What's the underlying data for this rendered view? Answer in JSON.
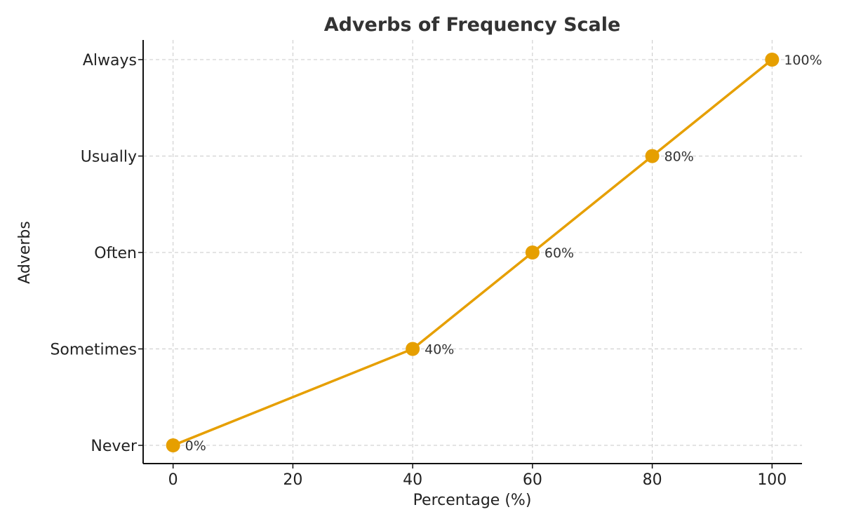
{
  "chart_data": {
    "type": "line",
    "title": "Adverbs of Frequency Scale",
    "xlabel": "Percentage (%)",
    "ylabel": "Adverbs",
    "xlim": [
      -5,
      105
    ],
    "x_ticks": [
      0,
      20,
      40,
      60,
      80,
      100
    ],
    "y_categories": [
      "Never",
      "Sometimes",
      "Often",
      "Usually",
      "Always"
    ],
    "grid": true,
    "legend": "none",
    "series": [
      {
        "color": "#E69F00",
        "points": [
          {
            "x": 0,
            "y": "Never",
            "label": "0%"
          },
          {
            "x": 40,
            "y": "Sometimes",
            "label": "40%"
          },
          {
            "x": 60,
            "y": "Often",
            "label": "60%"
          },
          {
            "x": 80,
            "y": "Usually",
            "label": "80%"
          },
          {
            "x": 100,
            "y": "Always",
            "label": "100%"
          }
        ]
      }
    ]
  }
}
